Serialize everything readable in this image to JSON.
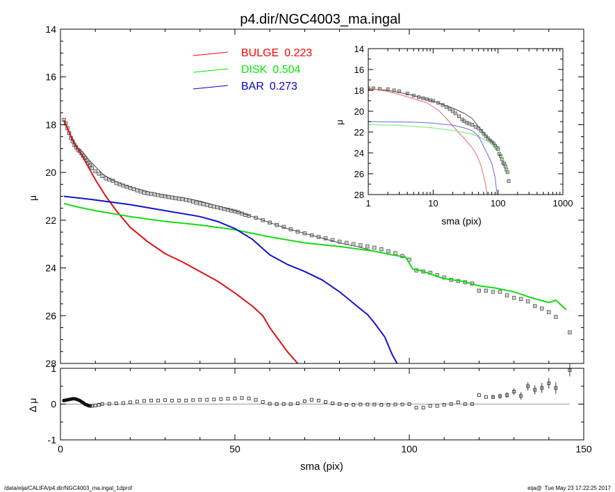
{
  "chart_data": [
    {
      "type": "line",
      "panel": "main",
      "title": "p4.dir/NGC4003_ma.ingal",
      "xlabel": "",
      "ylabel": "μ",
      "xlim": [
        0,
        150
      ],
      "ylim": [
        28,
        14
      ],
      "y_inverted": true,
      "x_ticks": [
        0,
        50,
        100,
        150
      ],
      "y_ticks": [
        14,
        16,
        18,
        20,
        22,
        24,
        26,
        28
      ],
      "legend_position": "top-center",
      "legend": [
        {
          "name": "BULGE",
          "value": "0.223",
          "color": "#ff0000"
        },
        {
          "name": "DISK",
          "value": "0.504",
          "color": "#00ee00"
        },
        {
          "name": "BAR",
          "value": "0.273",
          "color": "#0000cc"
        }
      ],
      "series": [
        {
          "name": "BULGE",
          "color": "#dd1111",
          "x": [
            1,
            3,
            5,
            7,
            10,
            13,
            16,
            20,
            25,
            30,
            35,
            40,
            45,
            50,
            55,
            58,
            60,
            63,
            65,
            68
          ],
          "y": [
            17.8,
            18.5,
            19.0,
            19.5,
            20.3,
            21.0,
            21.6,
            22.3,
            22.9,
            23.4,
            23.75,
            24.15,
            24.55,
            25.05,
            25.6,
            26.0,
            26.5,
            27.1,
            27.5,
            28.0
          ]
        },
        {
          "name": "DISK",
          "color": "#11dd11",
          "x": [
            1,
            5,
            10,
            20,
            30,
            40,
            50,
            60,
            70,
            80,
            90,
            95,
            99,
            100,
            101,
            103,
            105,
            110,
            115,
            120,
            125,
            130,
            135,
            140,
            142,
            145
          ],
          "y": [
            21.3,
            21.45,
            21.6,
            21.85,
            22.05,
            22.2,
            22.4,
            22.7,
            22.95,
            23.1,
            23.3,
            23.45,
            23.55,
            23.8,
            24.05,
            24.1,
            24.2,
            24.45,
            24.55,
            24.75,
            24.85,
            25.0,
            25.25,
            25.45,
            25.35,
            25.75
          ]
        },
        {
          "name": "BAR",
          "color": "#1111cc",
          "x": [
            1,
            10,
            20,
            30,
            40,
            45,
            50,
            55,
            60,
            65,
            70,
            75,
            80,
            85,
            88,
            90,
            93,
            95,
            96.5
          ],
          "y": [
            21.0,
            21.15,
            21.35,
            21.6,
            21.85,
            22.05,
            22.35,
            22.8,
            23.45,
            23.85,
            24.15,
            24.5,
            25.0,
            25.6,
            25.95,
            26.3,
            26.9,
            27.6,
            28.0
          ]
        },
        {
          "name": "",
          "color": "#444444",
          "kind": "model-total",
          "x": [
            1,
            2,
            3,
            4,
            5,
            6,
            7,
            8,
            10,
            12,
            14,
            17,
            20,
            25,
            30,
            35,
            40,
            45,
            50,
            55,
            60,
            65,
            70,
            75,
            80,
            85,
            90,
            95,
            99
          ],
          "y": [
            17.85,
            18.15,
            18.55,
            18.85,
            19.0,
            19.1,
            19.25,
            19.45,
            19.75,
            20.05,
            20.25,
            20.45,
            20.6,
            20.8,
            20.95,
            21.05,
            21.2,
            21.4,
            21.6,
            21.85,
            22.1,
            22.35,
            22.55,
            22.75,
            22.95,
            23.1,
            23.3,
            23.45,
            23.55
          ]
        }
      ],
      "observed": {
        "x": [
          1,
          1.5,
          2,
          2.5,
          3,
          3.5,
          4,
          4.5,
          5,
          5.5,
          6,
          6.5,
          7,
          7.5,
          8,
          8.5,
          9,
          10,
          11,
          12,
          13,
          14,
          15,
          16,
          17,
          18,
          19,
          20,
          21,
          22,
          23,
          24,
          25,
          26,
          27,
          28,
          29,
          30,
          31,
          32,
          33,
          34,
          35,
          36,
          37,
          38,
          39,
          40,
          41,
          42,
          43,
          44,
          45,
          46,
          47,
          48,
          49,
          50,
          51,
          52,
          53,
          54,
          56,
          58,
          60,
          62,
          64,
          66,
          68,
          70,
          72,
          74,
          76,
          78,
          80,
          82,
          84,
          86,
          88,
          90,
          92,
          94,
          96,
          98,
          100,
          102,
          104,
          106,
          108,
          110,
          112,
          114,
          116,
          118,
          120,
          122,
          124,
          126,
          128,
          130,
          132,
          134,
          136,
          138,
          140,
          142,
          146
        ],
        "y": [
          17.8,
          17.95,
          18.15,
          18.35,
          18.55,
          18.7,
          18.85,
          18.95,
          19.05,
          19.1,
          19.2,
          19.3,
          19.4,
          19.5,
          19.6,
          19.7,
          19.8,
          19.95,
          20.05,
          20.15,
          20.25,
          20.3,
          20.35,
          20.45,
          20.5,
          20.55,
          20.6,
          20.65,
          20.7,
          20.75,
          20.8,
          20.85,
          20.88,
          20.9,
          20.92,
          20.95,
          20.98,
          21.0,
          21.03,
          21.05,
          21.08,
          21.1,
          21.12,
          21.15,
          21.18,
          21.22,
          21.27,
          21.3,
          21.33,
          21.36,
          21.4,
          21.43,
          21.46,
          21.5,
          21.53,
          21.56,
          21.6,
          21.63,
          21.67,
          21.72,
          21.78,
          21.82,
          21.9,
          22.0,
          22.1,
          22.2,
          22.28,
          22.38,
          22.48,
          22.55,
          22.63,
          22.7,
          22.76,
          22.83,
          22.9,
          22.95,
          23.0,
          23.05,
          23.1,
          23.15,
          23.22,
          23.3,
          23.38,
          23.5,
          23.65,
          24.1,
          24.15,
          24.2,
          24.3,
          24.4,
          24.5,
          24.55,
          24.6,
          24.65,
          24.95,
          24.95,
          25.0,
          25.0,
          25.15,
          25.25,
          25.3,
          25.4,
          25.6,
          25.7,
          25.85,
          26.05,
          26.7
        ]
      }
    },
    {
      "type": "scatter",
      "panel": "residual",
      "title": "",
      "xlabel": "sma (pix)",
      "ylabel": "Δ μ",
      "xlim": [
        0,
        150
      ],
      "ylim": [
        -1,
        1
      ],
      "x_ticks": [
        0,
        50,
        100,
        150
      ],
      "y_ticks": [
        -1,
        0,
        1
      ],
      "series": [
        {
          "name": "",
          "color": "#333333",
          "x": [
            1,
            1.5,
            2,
            2.5,
            3,
            3.5,
            4,
            4.5,
            5,
            5.5,
            6,
            6.5,
            7,
            7.5,
            8,
            8.5,
            9,
            10,
            11,
            12,
            14,
            16,
            18,
            20,
            22,
            24,
            26,
            28,
            30,
            32,
            34,
            36,
            38,
            40,
            42,
            44,
            46,
            48,
            50,
            52,
            54,
            56,
            58,
            60,
            62,
            64,
            66,
            68,
            70,
            72,
            74,
            76,
            78,
            80,
            82,
            84,
            86,
            88,
            90,
            92,
            94,
            96,
            98,
            100,
            102,
            104,
            106,
            108,
            110,
            112,
            114,
            116,
            118,
            120,
            122,
            124,
            126,
            128,
            130,
            132,
            134,
            136,
            138,
            140,
            142,
            146
          ],
          "y": [
            0.1,
            0.11,
            0.12,
            0.13,
            0.14,
            0.15,
            0.15,
            0.14,
            0.12,
            0.1,
            0.07,
            0.04,
            0.0,
            -0.02,
            -0.04,
            -0.05,
            -0.05,
            -0.04,
            -0.02,
            0.0,
            0.01,
            0.02,
            0.03,
            0.05,
            0.07,
            0.09,
            0.1,
            0.1,
            0.11,
            0.1,
            0.1,
            0.1,
            0.11,
            0.12,
            0.12,
            0.13,
            0.14,
            0.15,
            0.16,
            0.17,
            0.16,
            0.12,
            0.06,
            0.01,
            0.0,
            0.0,
            0.0,
            0.02,
            0.08,
            0.12,
            0.1,
            0.06,
            0.02,
            0.0,
            -0.02,
            -0.02,
            -0.01,
            -0.01,
            -0.01,
            -0.02,
            -0.02,
            -0.01,
            -0.01,
            0.0,
            -0.1,
            -0.1,
            -0.05,
            -0.05,
            -0.02,
            0.0,
            0.05,
            0.0,
            0.0,
            0.25,
            0.2,
            0.2,
            0.22,
            0.25,
            0.35,
            0.23,
            0.5,
            0.4,
            0.45,
            0.58,
            0.45,
            0.95
          ],
          "error_indices_from": 75
        }
      ]
    },
    {
      "type": "line",
      "panel": "inset",
      "title": "",
      "xlabel": "sma (pix)",
      "ylabel": "μ",
      "x_scale": "log",
      "xlim": [
        1,
        1000
      ],
      "ylim": [
        28,
        14
      ],
      "y_inverted": true,
      "x_ticks": [
        1,
        10,
        100,
        1000
      ],
      "y_ticks": [
        14,
        16,
        18,
        20,
        22,
        24,
        26,
        28
      ],
      "series": [
        {
          "name": "BULGE",
          "color": "#ee6666",
          "x": [
            1,
            2,
            3,
            5,
            8,
            12,
            16,
            20,
            25,
            30,
            35,
            40,
            45,
            50,
            55,
            60,
            65,
            68
          ],
          "y": [
            17.8,
            18.1,
            18.4,
            18.8,
            19.2,
            19.9,
            20.7,
            21.4,
            22.1,
            22.6,
            23.1,
            23.5,
            24.0,
            24.6,
            25.3,
            26.2,
            27.2,
            28.0
          ]
        },
        {
          "name": "DISK",
          "color": "#66ee66",
          "x": [
            1,
            3,
            10,
            20,
            40,
            60,
            80,
            100,
            120,
            145
          ],
          "y": [
            21.3,
            21.35,
            21.6,
            21.85,
            22.2,
            22.7,
            23.1,
            23.6,
            24.6,
            25.8
          ]
        },
        {
          "name": "BAR",
          "color": "#6666ee",
          "x": [
            1,
            5,
            10,
            20,
            30,
            40,
            50,
            60,
            70,
            80,
            90,
            96.5
          ],
          "y": [
            21.0,
            21.05,
            21.15,
            21.35,
            21.6,
            21.85,
            22.4,
            23.4,
            24.2,
            25.0,
            26.3,
            28.0
          ]
        },
        {
          "name": "",
          "color": "#444444",
          "kind": "model-total",
          "x": [
            1,
            2,
            3,
            5,
            8,
            12,
            20,
            30,
            40,
            50,
            60,
            70,
            80,
            90,
            99
          ],
          "y": [
            17.85,
            18.0,
            18.2,
            18.5,
            18.85,
            19.2,
            19.7,
            20.2,
            20.7,
            21.5,
            22.1,
            22.6,
            22.9,
            23.3,
            23.55
          ]
        }
      ],
      "observed": {
        "x": [
          1,
          1.2,
          1.5,
          2,
          2.5,
          3,
          4,
          5,
          6,
          7,
          8,
          9,
          10,
          12,
          14,
          16,
          18,
          20,
          22,
          25,
          28,
          30,
          33,
          36,
          40,
          45,
          50,
          55,
          60,
          65,
          70,
          75,
          80,
          85,
          90,
          95,
          100,
          105,
          110,
          115,
          120,
          125,
          130,
          135,
          140,
          146
        ],
        "y": [
          17.8,
          17.8,
          17.85,
          17.9,
          18.0,
          18.1,
          18.3,
          18.5,
          18.65,
          18.75,
          18.85,
          18.95,
          19.0,
          19.2,
          19.4,
          19.6,
          19.8,
          20.0,
          20.2,
          20.5,
          20.8,
          20.95,
          21.1,
          21.2,
          21.3,
          21.5,
          21.65,
          21.9,
          22.15,
          22.4,
          22.6,
          22.8,
          22.95,
          23.1,
          23.3,
          23.5,
          23.65,
          24.1,
          24.3,
          24.6,
          24.95,
          25.05,
          25.3,
          25.6,
          25.85,
          26.7
        ]
      }
    }
  ],
  "footer": {
    "path": "/data/eija/CALIFA/p4.dir/NGC4003_ma.ingal_1dprof",
    "user": "eija@",
    "timestamp": "Tue May 23 17:22:25 2017"
  }
}
